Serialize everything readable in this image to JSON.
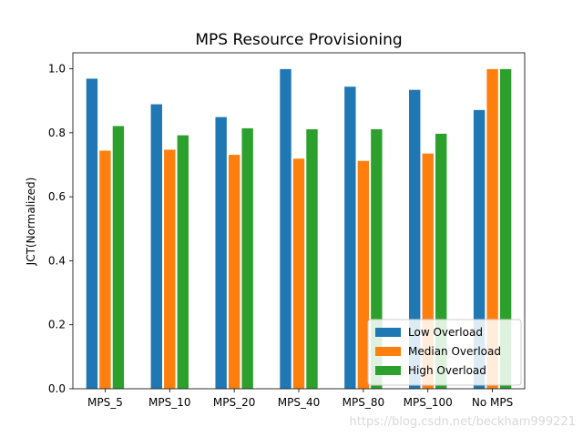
{
  "chart_data": {
    "type": "bar",
    "title": "MPS Resource Provisioning",
    "xlabel": "",
    "ylabel": "JCT(Normalized)",
    "ylim": [
      0,
      1.05
    ],
    "yticks": [
      "0.0",
      "0.2",
      "0.4",
      "0.6",
      "0.8",
      "1.0"
    ],
    "categories": [
      "MPS_5",
      "MPS_10",
      "MPS_20",
      "MPS_40",
      "MPS_80",
      "MPS_100",
      "No MPS"
    ],
    "series": [
      {
        "name": "Low Overload",
        "color": "#1f77b4",
        "values": [
          0.97,
          0.89,
          0.85,
          1.0,
          0.945,
          0.935,
          0.872
        ]
      },
      {
        "name": "Median Overload",
        "color": "#ff7f0e",
        "values": [
          0.745,
          0.748,
          0.732,
          0.72,
          0.713,
          0.736,
          1.0
        ]
      },
      {
        "name": "High Overload",
        "color": "#2ca02c",
        "values": [
          0.822,
          0.793,
          0.815,
          0.812,
          0.812,
          0.798,
          1.0
        ]
      }
    ],
    "legend_position": "lower-right",
    "grid": false
  },
  "watermark": "https://blog.csdn.net/beckham999221"
}
